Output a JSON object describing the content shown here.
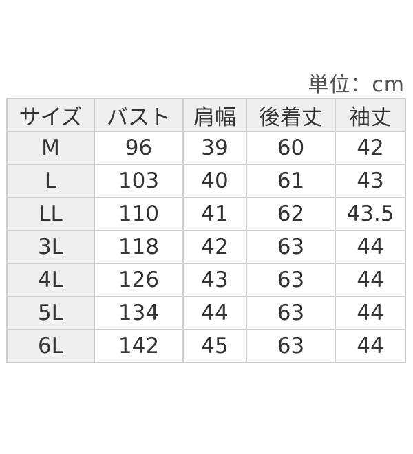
{
  "unit_label": "単位：cm",
  "table": {
    "headers": [
      "サイズ",
      "バスト",
      "肩幅",
      "後着丈",
      "袖丈"
    ],
    "rows": [
      [
        "M",
        "96",
        "39",
        "60",
        "42"
      ],
      [
        "L",
        "103",
        "40",
        "61",
        "43"
      ],
      [
        "LL",
        "110",
        "41",
        "62",
        "43.5"
      ],
      [
        "3L",
        "118",
        "42",
        "63",
        "44"
      ],
      [
        "4L",
        "126",
        "43",
        "63",
        "44"
      ],
      [
        "5L",
        "134",
        "44",
        "63",
        "44"
      ],
      [
        "6L",
        "142",
        "45",
        "63",
        "44"
      ]
    ]
  }
}
